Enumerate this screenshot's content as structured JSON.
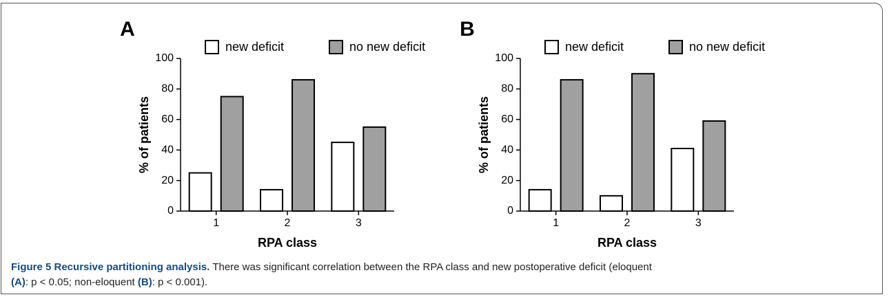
{
  "chart_data": [
    {
      "type": "bar",
      "panel_label": "A",
      "ylabel": "% of patients",
      "xlabel": "RPA class",
      "categories": [
        "1",
        "2",
        "3"
      ],
      "series": [
        {
          "name": "new deficit",
          "color": "#ffffff",
          "values": [
            25,
            14,
            45
          ]
        },
        {
          "name": "no new deficit",
          "color": "#a0a0a0",
          "values": [
            75,
            86,
            55
          ]
        }
      ],
      "ylim": [
        0,
        100
      ],
      "yticks": [
        0,
        20,
        40,
        60,
        80,
        100
      ],
      "grid": false,
      "legend": "top"
    },
    {
      "type": "bar",
      "panel_label": "B",
      "ylabel": "% of patients",
      "xlabel": "RPA class",
      "categories": [
        "1",
        "2",
        "3"
      ],
      "series": [
        {
          "name": "new deficit",
          "color": "#ffffff",
          "values": [
            14,
            10,
            41
          ]
        },
        {
          "name": "no new deficit",
          "color": "#a0a0a0",
          "values": [
            86,
            90,
            59
          ]
        }
      ],
      "ylim": [
        0,
        100
      ],
      "yticks": [
        0,
        20,
        40,
        60,
        80,
        100
      ],
      "grid": false,
      "legend": "top"
    }
  ],
  "caption": {
    "lines": [
      [
        {
          "text": "Figure 5 Recursive partitioning analysis.",
          "bold": true
        },
        {
          "text": " There was significant correlation between the RPA class and new postoperative deficit (eloquent",
          "bold": false
        }
      ],
      [
        {
          "text": "(A)",
          "bold": true
        },
        {
          "text": ": p < 0.05; non-eloquent ",
          "bold": false
        },
        {
          "text": "(B)",
          "bold": true
        },
        {
          "text": ": p < 0.001).",
          "bold": false
        }
      ]
    ]
  }
}
